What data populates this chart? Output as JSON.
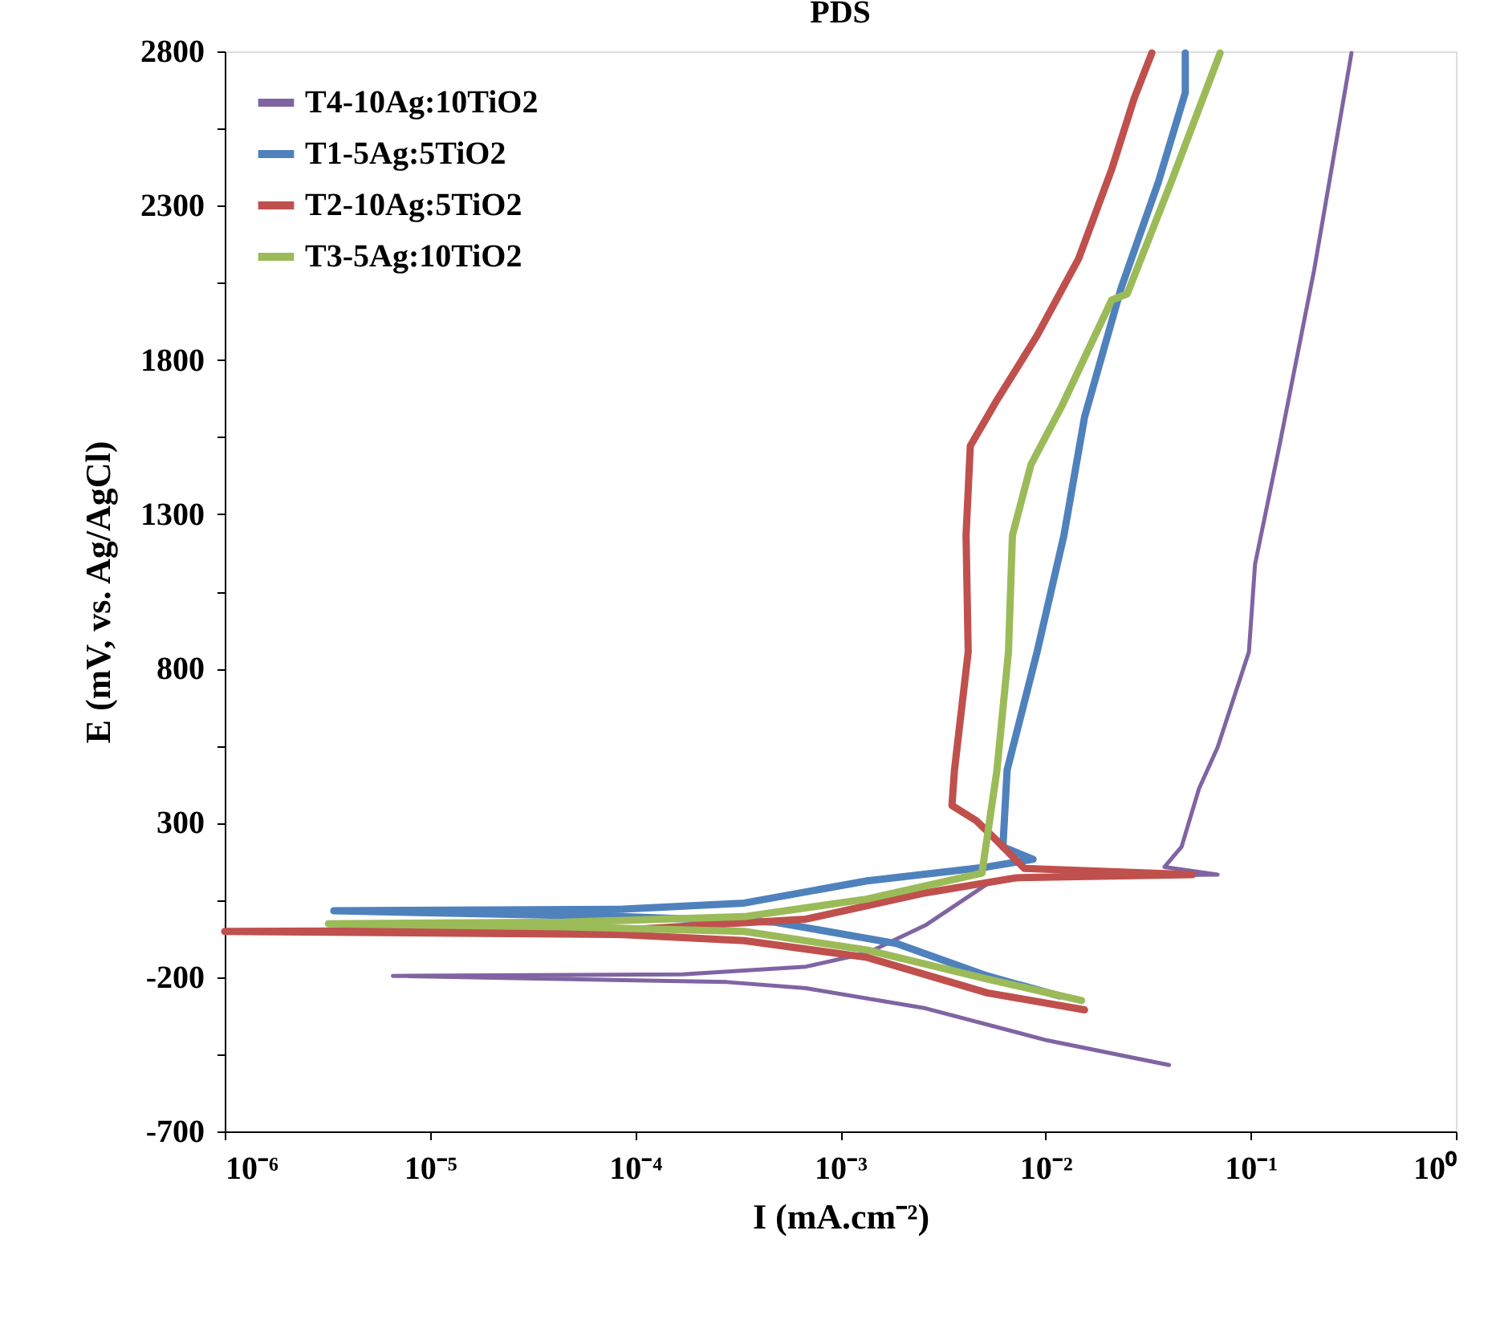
{
  "chart_data": {
    "type": "line",
    "title": "PDS",
    "xlabel": "I (mA.cm⁻²)",
    "ylabel": "E (mV, vs. Ag/AgCl)",
    "log": "x",
    "xlim": [
      1e-06,
      1
    ],
    "xticks": [
      {
        "value": 1e-06,
        "label": "10⁻⁶"
      },
      {
        "value": 1e-05,
        "label": "10⁻⁵"
      },
      {
        "value": 0.0001,
        "label": "10⁻⁴"
      },
      {
        "value": 0.001,
        "label": "10⁻³"
      },
      {
        "value": 0.01,
        "label": "10⁻²"
      },
      {
        "value": 0.1,
        "label": "10⁻¹"
      },
      {
        "value": 1,
        "label": "10⁰"
      }
    ],
    "ylim": [
      -700,
      2800
    ],
    "yticks": [
      -700,
      {
        "value": -450,
        "label": null
      },
      -200,
      {
        "value": 50,
        "label": null
      },
      300,
      {
        "value": 550,
        "label": null
      },
      800,
      {
        "value": 1050,
        "label": null
      },
      1300,
      {
        "value": 1550,
        "label": null
      },
      1800,
      {
        "value": 2050,
        "label": null
      },
      2300,
      {
        "value": 2550,
        "label": null
      },
      2800
    ],
    "grid": false,
    "legend": "top left",
    "marker": "none",
    "line_style": "solid",
    "series": [
      {
        "name": "T4-10Ag:10TiO2",
        "color": "#8064a2",
        "x": [
          0.04,
          0.0102,
          0.0026,
          0.00068,
          0.00028,
          6.6e-06,
          0.00017,
          0.00068,
          0.00135,
          0.0026,
          0.0052,
          0.0089,
          0.069,
          0.038,
          0.046,
          0.056,
          0.069,
          0.098,
          0.105,
          0.138,
          0.204,
          0.31
        ],
        "values": [
          -485,
          -405,
          -301,
          -236,
          -216,
          -196,
          -191,
          -166,
          -122,
          -32,
          102,
          127,
          132,
          157,
          222,
          411,
          545,
          854,
          1138,
          1521,
          2093,
          2795
        ]
      },
      {
        "name": "T1-5Ag:5TiO2",
        "color": "#4f81bd",
        "x": [
          0.0117,
          0.0052,
          0.0019,
          0.00048,
          8.7e-05,
          3.4e-06,
          8.7e-05,
          0.00034,
          0.00135,
          0.0052,
          0.0087,
          0.0062,
          0.0065,
          0.0091,
          0.0123,
          0.0155,
          0.0234,
          0.0355,
          0.048,
          0.048
        ],
        "values": [
          -261,
          -196,
          -92,
          -22,
          -4,
          15,
          20,
          40,
          112,
          157,
          182,
          222,
          471,
          854,
          1232,
          1615,
          2034,
          2377,
          2666,
          2795
        ]
      },
      {
        "name": "T2-10Ag:5TiO2",
        "color": "#c0504d",
        "x": [
          0.0155,
          0.0052,
          0.00135,
          0.00034,
          8.7e-05,
          1e-06,
          8.7e-05,
          0.00068,
          0.0026,
          0.0072,
          0.052,
          0.0079,
          0.0058,
          0.0046,
          0.0035,
          0.0036,
          0.0042,
          0.0041,
          0.0043,
          0.0058,
          0.0091,
          0.0145,
          0.021,
          0.027,
          0.033
        ],
        "values": [
          -306,
          -251,
          -136,
          -82,
          -62,
          -52,
          -47,
          -12,
          73,
          122,
          132,
          152,
          242,
          307,
          356,
          471,
          854,
          1232,
          1521,
          1670,
          1879,
          2128,
          2417,
          2646,
          2795
        ]
      },
      {
        "name": "T3-5Ag:10TiO2",
        "color": "#9bbb59",
        "x": [
          0.015,
          0.0052,
          0.00135,
          0.00034,
          4.5e-05,
          3.2e-06,
          4.5e-05,
          0.00034,
          0.00135,
          0.0049,
          0.0058,
          0.0066,
          0.0069,
          0.0085,
          0.012,
          0.021,
          0.025,
          0.041,
          0.071
        ],
        "values": [
          -276,
          -206,
          -112,
          -52,
          -37,
          -27,
          -22,
          -4,
          53,
          137,
          471,
          854,
          1232,
          1461,
          1650,
          1994,
          2014,
          2377,
          2795
        ]
      }
    ]
  }
}
